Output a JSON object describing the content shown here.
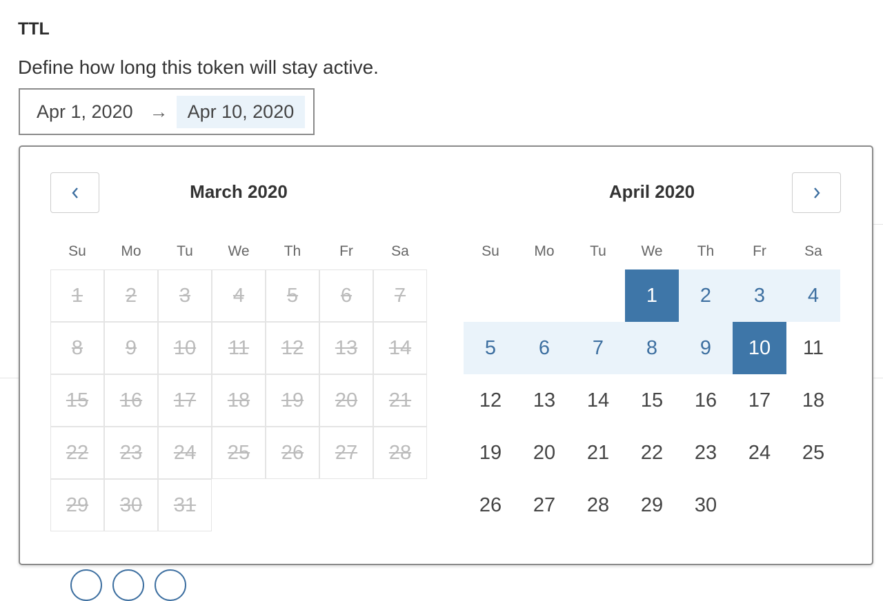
{
  "ttl": {
    "heading": "TTL",
    "description": "Define how long this token will stay active.",
    "start": "Apr 1, 2020",
    "arrow": "→",
    "end": "Apr 10, 2020"
  },
  "picker": {
    "prev_icon": "chevron-left-icon",
    "next_icon": "chevron-right-icon",
    "weekdays": [
      "Su",
      "Mo",
      "Tu",
      "We",
      "Th",
      "Fr",
      "Sa"
    ],
    "left": {
      "title": "March 2020",
      "first_weekday": 0,
      "days": 31,
      "disabled": true
    },
    "right": {
      "title": "April 2020",
      "first_weekday": 3,
      "days": 30,
      "selected_start": 1,
      "selected_end": 10
    },
    "colors": {
      "selected": "#3e76a8",
      "range": "#eaf3fa"
    }
  }
}
